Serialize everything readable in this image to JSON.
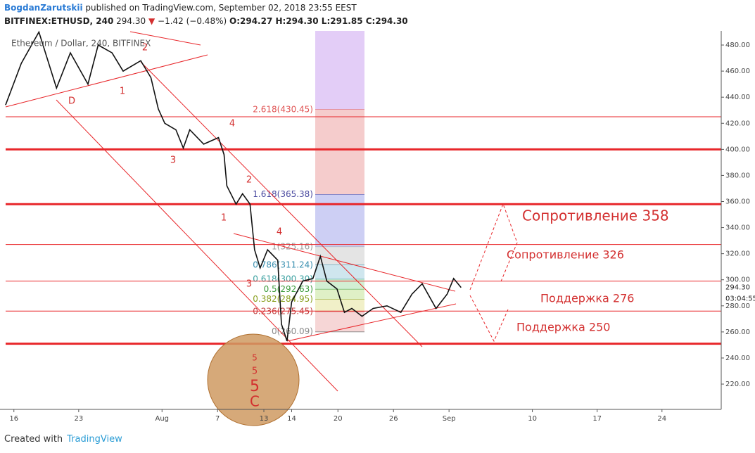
{
  "header": {
    "author": "BogdanZarutskii",
    "published": "published on TradingView.com, September 02, 2018 23:55 EEST",
    "symbol": "BITFINEX:ETHUSD, 240",
    "price": "294.30",
    "arrow": "▼",
    "change": "−1.42 (−0.48%)",
    "ohlc": "O:294.27 H:294.30 L:291.85 C:294.30"
  },
  "chart_data": {
    "type": "line",
    "title": "Ethereum / Dollar, 240, BITFINEX",
    "color": "#111111",
    "x": [
      -0.9,
      0.8,
      2.7,
      4.6,
      6.1,
      8.0,
      9.1,
      10.6,
      11.8,
      13.7,
      14.8,
      15.6,
      16.3,
      17.5,
      18.3,
      19.0,
      20.5,
      22.1,
      22.7,
      23.0,
      24.0,
      24.7,
      25.5,
      26.0,
      26.6,
      27.4,
      28.5,
      28.9,
      29.5,
      30.0,
      31.2,
      32.3,
      33.1,
      33.8,
      34.9,
      35.7,
      36.5,
      37.6,
      38.8,
      40.3,
      41.8,
      43.0,
      44.1,
      45.6,
      46.8,
      47.5,
      48.3
    ],
    "values": [
      434,
      466,
      490,
      447,
      474,
      450,
      480,
      474,
      460,
      468,
      455,
      431,
      420,
      415,
      401,
      415,
      404,
      409,
      396,
      372,
      358,
      366,
      358,
      323,
      309,
      323,
      315,
      266,
      253,
      283,
      299,
      301,
      318,
      299,
      293,
      275,
      278,
      272,
      278,
      280,
      275,
      289,
      297,
      278,
      289,
      301,
      294
    ],
    "xlim": [
      -1.5,
      76.4
    ],
    "ylim": [
      200.6,
      490.8
    ],
    "xticks": [
      {
        "value": 0,
        "label": "16"
      },
      {
        "value": 7,
        "label": "23"
      },
      {
        "value": 16,
        "label": "Aug"
      },
      {
        "value": 22,
        "label": "7"
      },
      {
        "value": 27,
        "label": "13"
      },
      {
        "value": 30,
        "label": "14"
      },
      {
        "value": 35,
        "label": "20"
      },
      {
        "value": 41,
        "label": "26"
      },
      {
        "value": 47,
        "label": "Sep"
      },
      {
        "value": 56,
        "label": "10"
      },
      {
        "value": 63,
        "label": "17"
      },
      {
        "value": 70,
        "label": "24"
      }
    ],
    "yticks": [
      {
        "value": 220,
        "label": "220.00"
      },
      {
        "value": 240,
        "label": "240.00"
      },
      {
        "value": 260,
        "label": "260.00"
      },
      {
        "value": 280,
        "label": "280.00"
      },
      {
        "value": 300,
        "label": "300.00"
      },
      {
        "value": 320,
        "label": "320.00"
      },
      {
        "value": 340,
        "label": "340.00"
      },
      {
        "value": 360,
        "label": "360.00"
      },
      {
        "value": 380,
        "label": "380.00"
      },
      {
        "value": 400,
        "label": "400.00"
      },
      {
        "value": 420,
        "label": "420.00"
      },
      {
        "value": 440,
        "label": "440.00"
      },
      {
        "value": 460,
        "label": "460.00"
      },
      {
        "value": 480,
        "label": "480.00"
      }
    ],
    "last_price": {
      "value": 294.3,
      "label": "294.30"
    },
    "countdown": "03:04:55",
    "levels": [
      {
        "value": 400,
        "width": "thick"
      },
      {
        "value": 358,
        "width": "thick"
      },
      {
        "value": 251,
        "width": "thick"
      },
      {
        "value": 425,
        "width": "thin"
      },
      {
        "value": 327,
        "width": "thin"
      },
      {
        "value": 299,
        "width": "thin"
      },
      {
        "value": 276,
        "width": "thin"
      }
    ],
    "level_color": "#e8262a",
    "fib": [
      {
        "value": 430.45,
        "label": "2.618(430.45)",
        "color": "#e05555",
        "fill": "#e3cdf7"
      },
      {
        "value": 365.38,
        "label": "1.618(365.38)",
        "color": "#4a4aa0",
        "fill": "#f5cccc"
      },
      {
        "value": 325.16,
        "label": "1(325.16)",
        "color": "#9a9a9a",
        "fill": "#cdcff4"
      },
      {
        "value": 311.24,
        "label": "0.786(311.24)",
        "color": "#3a90b0",
        "fill": "#e4e4e4"
      },
      {
        "value": 300.3,
        "label": "0.618(300.30)",
        "color": "#3aa0a0",
        "fill": "#cfe6ee"
      },
      {
        "value": 292.63,
        "label": "0.5(292.63)",
        "color": "#3a9a3a",
        "fill": "#d2efd3"
      },
      {
        "value": 284.95,
        "label": "0.382(284.95)",
        "color": "#8aa020",
        "fill": "#dff0c6"
      },
      {
        "value": 275.45,
        "label": "0.236(275.45)",
        "color": "#c04040",
        "fill": "#f1f0c8"
      },
      {
        "value": 260.09,
        "label": "0(260.09)",
        "color": "#8a8a8a",
        "fill": "#f6d6d6"
      }
    ],
    "annotations": [
      "Сопротивление 358",
      "Сопротивление 326",
      "Поддержка 276",
      "Поддержка 250"
    ],
    "wave_labels": [
      "D",
      "1",
      "2",
      "3",
      "4",
      "2",
      "1",
      "4",
      "3",
      "5",
      "5",
      "5",
      "C"
    ]
  },
  "footer": {
    "created": "Created with",
    "brand": "TradingView"
  }
}
